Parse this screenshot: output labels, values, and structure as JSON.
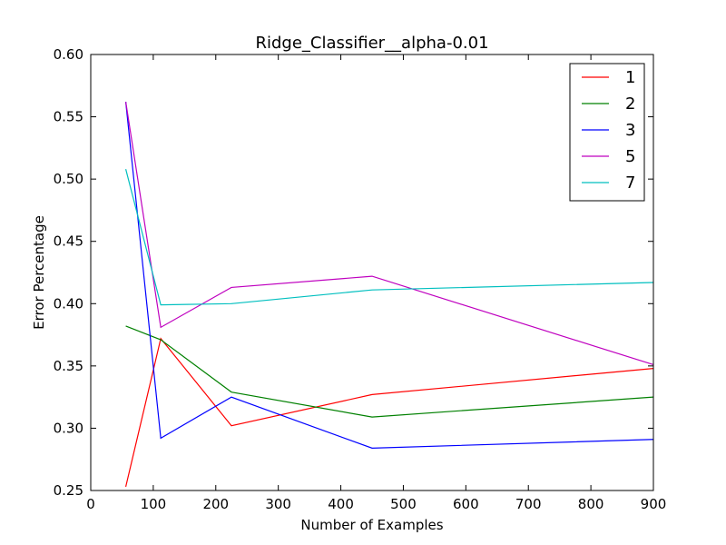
{
  "chart_data": {
    "type": "line",
    "title": "Ridge_Classifier__alpha-0.01",
    "xlabel": "Number of Examples",
    "ylabel": "Error Percentage",
    "xlim": [
      0,
      900
    ],
    "ylim": [
      0.25,
      0.6
    ],
    "xticks": [
      0,
      100,
      200,
      300,
      400,
      500,
      600,
      700,
      800,
      900
    ],
    "yticks": [
      0.25,
      0.3,
      0.35,
      0.4,
      0.45,
      0.5,
      0.55,
      0.6
    ],
    "ytick_labels": [
      "0.25",
      "0.30",
      "0.35",
      "0.40",
      "0.45",
      "0.50",
      "0.55",
      "0.60"
    ],
    "grid": false,
    "legend": "top-right",
    "series": [
      {
        "name": "1",
        "color": "#ff0000",
        "x": [
          56,
          112,
          225,
          450,
          900
        ],
        "y": [
          0.253,
          0.372,
          0.302,
          0.327,
          0.348
        ]
      },
      {
        "name": "2",
        "color": "#008000",
        "x": [
          56,
          112,
          225,
          450,
          900
        ],
        "y": [
          0.382,
          0.371,
          0.329,
          0.309,
          0.325
        ]
      },
      {
        "name": "3",
        "color": "#0000ff",
        "x": [
          56,
          112,
          225,
          450,
          900
        ],
        "y": [
          0.562,
          0.292,
          0.325,
          0.284,
          0.291
        ]
      },
      {
        "name": "5",
        "color": "#bf00bf",
        "x": [
          56,
          112,
          225,
          450,
          900
        ],
        "y": [
          0.562,
          0.381,
          0.413,
          0.422,
          0.351
        ]
      },
      {
        "name": "7",
        "color": "#00bfbf",
        "x": [
          56,
          112,
          225,
          450,
          900
        ],
        "y": [
          0.508,
          0.399,
          0.4,
          0.411,
          0.417
        ]
      }
    ]
  }
}
